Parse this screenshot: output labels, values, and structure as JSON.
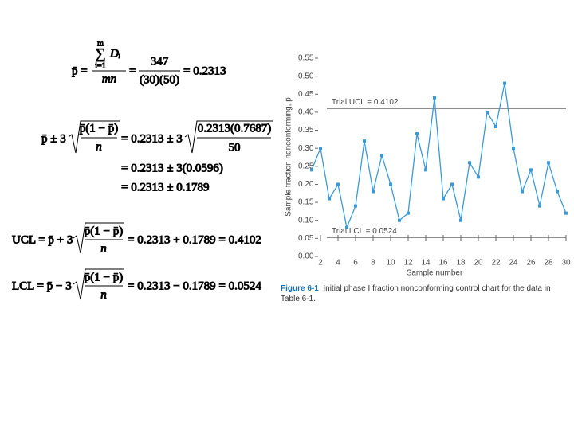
{
  "formulas": {
    "f1": {
      "lhs": "p̄ =",
      "sum_top": "m",
      "sum_sym": "∑",
      "sum_var": "Dᵢ",
      "sum_bottom": "i=1",
      "den1": "mn",
      "eq": "=",
      "num2": "347",
      "den2": "(30)(50)",
      "result": "= 0.2313"
    },
    "f2": {
      "lhs": "p̄ ± 3",
      "rad_num": "p̄(1 − p̄)",
      "rad_den": "n",
      "eq": "= 0.2313 ± 3",
      "rad2_num": "0.2313(0.7687)",
      "rad2_den": "50",
      "line2": "= 0.2313 ± 3(0.0596)",
      "line3": "= 0.2313 ± 0.1789"
    },
    "ucl": {
      "lhs": "UCL = p̄ + 3",
      "rad_num": "p̄(1 − p̄)",
      "rad_den": "n",
      "rhs": "= 0.2313 + 0.1789 = 0.4102"
    },
    "lcl": {
      "lhs": "LCL = p̄ − 3",
      "rad_num": "p̄(1 − p̄)",
      "rad_den": "n",
      "rhs": "= 0.2313 − 0.1789 = 0.0524"
    }
  },
  "chart_data": {
    "type": "line",
    "x_label": "Sample number",
    "y_label": "Sample fraction nonconforming, p̂",
    "caption_label": "Figure 6-1",
    "caption": "Initial phase I fraction nonconforming control chart for the data in Table 6-1.",
    "x": [
      1,
      2,
      3,
      4,
      5,
      6,
      7,
      8,
      9,
      10,
      11,
      12,
      13,
      14,
      15,
      16,
      17,
      18,
      19,
      20,
      21,
      22,
      23,
      24,
      25,
      26,
      27,
      28,
      29,
      30
    ],
    "series": [
      {
        "name": "Sample fraction nonconforming",
        "color": "#3a9ad9",
        "values": [
          0.24,
          0.3,
          0.16,
          0.2,
          0.08,
          0.14,
          0.32,
          0.18,
          0.28,
          0.2,
          0.1,
          0.12,
          0.34,
          0.24,
          0.44,
          0.16,
          0.2,
          0.1,
          0.26,
          0.22,
          0.4,
          0.36,
          0.48,
          0.3,
          0.18,
          0.24,
          0.14,
          0.26,
          0.18,
          0.12
        ]
      }
    ],
    "reference_lines": [
      {
        "value": 0.4102,
        "label": "Trial UCL = 0.4102"
      },
      {
        "value": 0.0524,
        "label": "Trial LCL = 0.0524"
      }
    ],
    "xlim": [
      0,
      30
    ],
    "xticks": [
      2,
      4,
      6,
      8,
      10,
      12,
      14,
      16,
      18,
      20,
      22,
      24,
      26,
      28,
      30
    ],
    "ylim": [
      0,
      0.55
    ],
    "yticks": [
      {
        "value": 0,
        "label": "0.00"
      },
      {
        "value": 0.05,
        "label": "0.05"
      },
      {
        "value": 0.1,
        "label": "0.10"
      },
      {
        "value": 0.15,
        "label": "0.15"
      },
      {
        "value": 0.2,
        "label": "0.20"
      },
      {
        "value": 0.25,
        "label": "0.25"
      },
      {
        "value": 0.3,
        "label": "0.30"
      },
      {
        "value": 0.35,
        "label": "0.35"
      },
      {
        "value": 0.4,
        "label": "0.40"
      },
      {
        "value": 0.45,
        "label": "0.45"
      },
      {
        "value": 0.5,
        "label": "0.50"
      },
      {
        "value": 0.55,
        "label": "0.55"
      }
    ]
  }
}
